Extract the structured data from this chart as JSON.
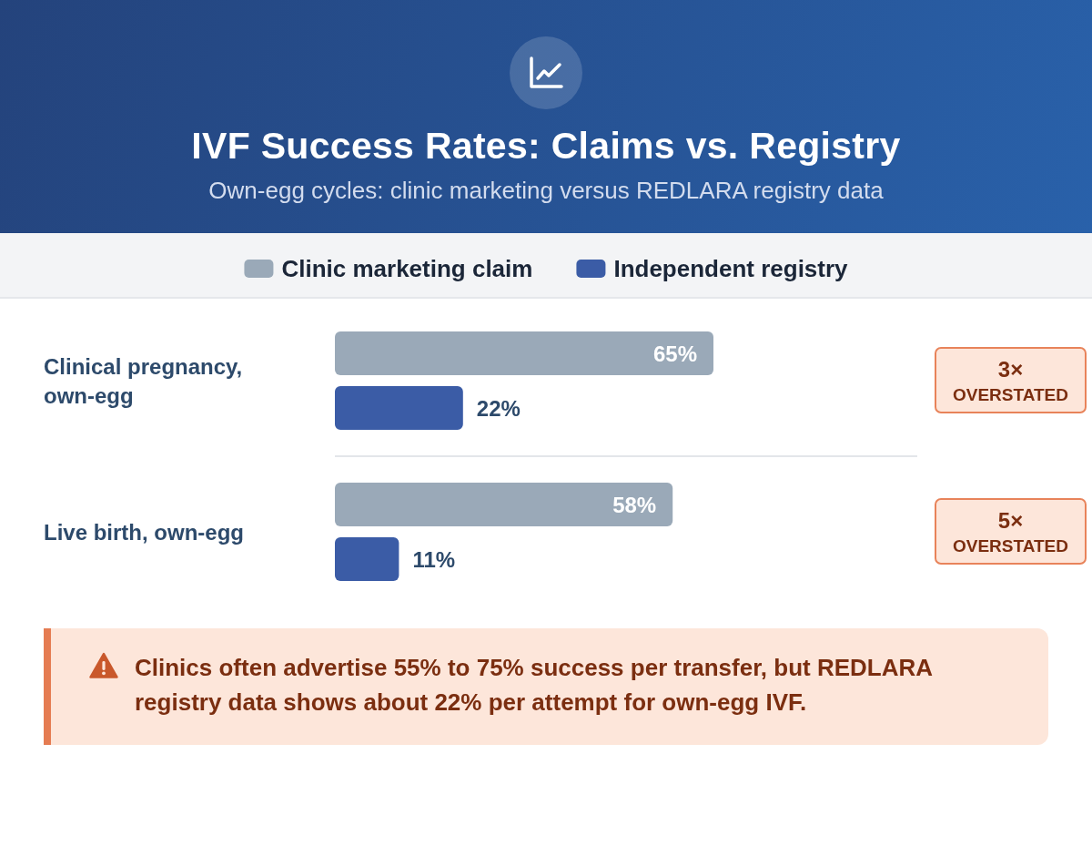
{
  "chart_data": {
    "type": "bar",
    "orientation": "horizontal",
    "title": "IVF Success Rates: Claims vs. Registry",
    "subtitle": "Own-egg cycles: clinic marketing versus REDLARA registry data",
    "categories": [
      "Clinical pregnancy, own-egg",
      "Live birth, own-egg"
    ],
    "series": [
      {
        "name": "Clinic marketing claim",
        "color": "#9aa9b8",
        "values": [
          65,
          58
        ],
        "value_labels": [
          "65%",
          "58%"
        ]
      },
      {
        "name": "Independent registry",
        "color": "#3b5ca6",
        "values": [
          22,
          11
        ],
        "value_labels": [
          "22%",
          "11%"
        ]
      }
    ],
    "xlim": [
      0,
      100
    ],
    "legend": "top",
    "grid": "y",
    "tick_labels": "y",
    "annotations": [
      "3× OVERSTATED",
      "5× OVERSTATED",
      "Clinics often advertise 55% to 75% success per transfer, but REDLARA registry data shows about 22% per attempt for own-egg IVF."
    ]
  }
}
